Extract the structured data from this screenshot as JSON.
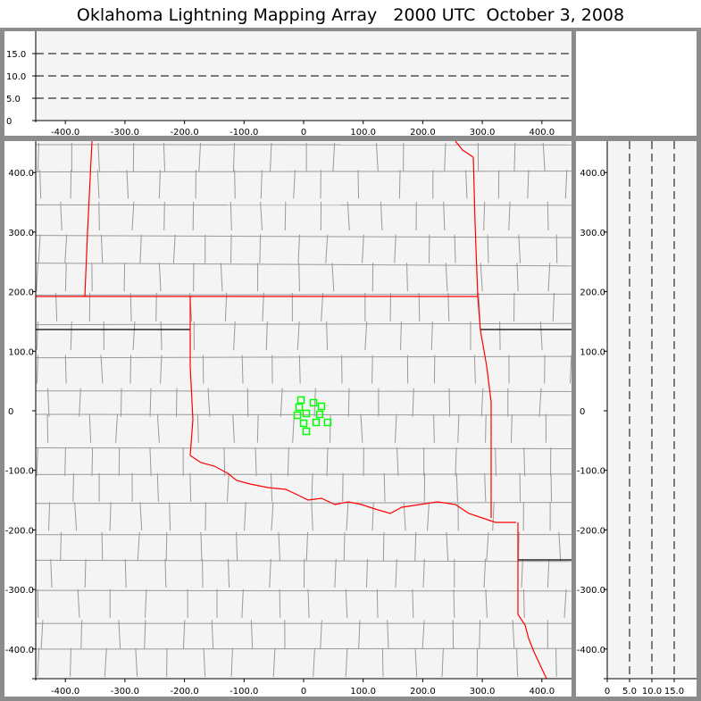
{
  "title": "Oklahoma Lightning Mapping Array   2000 UTC  October 3, 2008",
  "colors": {
    "state_border": "#ff0000",
    "county_border": "#999999",
    "source_marker": "#00ff00",
    "plot_bg": "#f4f4f4",
    "frame": "#8c8c8c"
  },
  "altitude_panel": {
    "y_ticks": [
      "15.0",
      "10.0",
      "5.0",
      "0"
    ],
    "x_ticks": [
      "-400.0",
      "-300.0",
      "-200.0",
      "-100.0",
      "0",
      "100.0",
      "200.0",
      "300.0",
      "400.0"
    ]
  },
  "plan_view": {
    "y_ticks": [
      "400.0",
      "300.0",
      "200.0",
      "100.0",
      "0",
      "-100.0",
      "-200.0",
      "-300.0",
      "-400.0"
    ],
    "x_ticks": [
      "-400.0",
      "-300.0",
      "-200.0",
      "-100.0",
      "0",
      "100.0",
      "200.0",
      "300.0",
      "400.0"
    ],
    "sources_km": [
      [
        -4.5,
        18
      ],
      [
        16.5,
        13.5
      ],
      [
        30,
        7.5
      ],
      [
        -7.5,
        6
      ],
      [
        4.5,
        -4.5
      ],
      [
        -10.5,
        -7.5
      ],
      [
        27,
        -6
      ],
      [
        0,
        -21
      ],
      [
        21,
        -19.5
      ],
      [
        40.5,
        -19.5
      ],
      [
        4.5,
        -34.5
      ]
    ]
  },
  "side_panel": {
    "y_ticks": [
      "400.0",
      "300.0",
      "200.0",
      "100.0",
      "0",
      "-100.0",
      "-200.0",
      "-300.0",
      "-400.0"
    ],
    "x_ticks": [
      "0",
      "5.0",
      "10.0",
      "15.0"
    ]
  }
}
